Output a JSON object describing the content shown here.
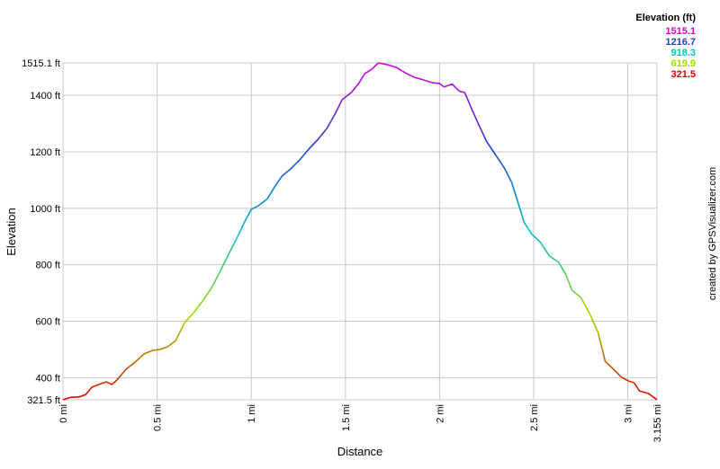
{
  "chart_data": {
    "type": "line",
    "x_label": "Distance",
    "y_label": "Elevation",
    "credit": "created by GPSVisualizer.com",
    "x": [
      0,
      0.04,
      0.086,
      0.12,
      0.153,
      0.19,
      0.23,
      0.26,
      0.287,
      0.335,
      0.383,
      0.43,
      0.478,
      0.517,
      0.555,
      0.598,
      0.646,
      0.694,
      0.742,
      0.79,
      0.837,
      0.885,
      0.933,
      0.967,
      1.0,
      1.038,
      1.086,
      1.124,
      1.163,
      1.21,
      1.258,
      1.306,
      1.354,
      1.402,
      1.445,
      1.483,
      1.531,
      1.57,
      1.603,
      1.641,
      1.675,
      1.722,
      1.77,
      1.818,
      1.866,
      1.914,
      1.962,
      2.0,
      2.024,
      2.067,
      2.105,
      2.134,
      2.172,
      2.211,
      2.249,
      2.297,
      2.344,
      2.383,
      2.416,
      2.45,
      2.488,
      2.536,
      2.584,
      2.632,
      2.67,
      2.703,
      2.751,
      2.799,
      2.842,
      2.88,
      2.919,
      2.967,
      3.005,
      3.033,
      3.062,
      3.11,
      3.155
    ],
    "values": [
      322,
      330,
      332,
      340,
      366,
      376,
      385,
      376,
      392,
      430,
      455,
      484,
      497,
      500,
      509,
      531,
      595,
      630,
      672,
      719,
      780,
      844,
      907,
      955,
      996,
      1009,
      1034,
      1076,
      1114,
      1140,
      1172,
      1210,
      1244,
      1283,
      1334,
      1385,
      1410,
      1442,
      1477,
      1493,
      1515.1,
      1509,
      1499,
      1480,
      1464,
      1455,
      1445,
      1442,
      1430,
      1440,
      1415,
      1410,
      1350,
      1292,
      1238,
      1190,
      1143,
      1092,
      1022,
      949,
      910,
      879,
      831,
      809,
      767,
      710,
      684,
      624,
      560,
      458,
      433,
      401,
      388,
      382,
      353,
      344,
      321.5
    ],
    "xlim": [
      0,
      3.155
    ],
    "ylim": [
      321.5,
      1515.1
    ],
    "xticks": [
      {
        "value": 0,
        "label": "0 mi"
      },
      {
        "value": 0.5,
        "label": "0.5 mi"
      },
      {
        "value": 1,
        "label": "1 mi"
      },
      {
        "value": 1.5,
        "label": "1.5 mi"
      },
      {
        "value": 2,
        "label": "2 mi"
      },
      {
        "value": 2.5,
        "label": "2.5 mi"
      },
      {
        "value": 3,
        "label": "3 mi"
      },
      {
        "value": 3.155,
        "label": "3.155 mi"
      }
    ],
    "yticks": [
      {
        "value": 321.5,
        "label": "321.5 ft"
      },
      {
        "value": 400,
        "label": "400 ft"
      },
      {
        "value": 600,
        "label": "600 ft"
      },
      {
        "value": 800,
        "label": "800 ft"
      },
      {
        "value": 1000,
        "label": "1000 ft"
      },
      {
        "value": 1200,
        "label": "1200 ft"
      },
      {
        "value": 1400,
        "label": "1400 ft"
      },
      {
        "value": 1515.1,
        "label": "1515.1 ft"
      }
    ],
    "grid": true,
    "legend": {
      "title": "Elevation (ft)",
      "items": [
        {
          "value": 1515.1,
          "color": "#e000e0"
        },
        {
          "value": 1216.7,
          "color": "#2040d0"
        },
        {
          "value": 918.3,
          "color": "#00c0c8"
        },
        {
          "value": 619.9,
          "color": "#a8d800"
        },
        {
          "value": 321.5,
          "color": "#e00000"
        }
      ]
    }
  }
}
